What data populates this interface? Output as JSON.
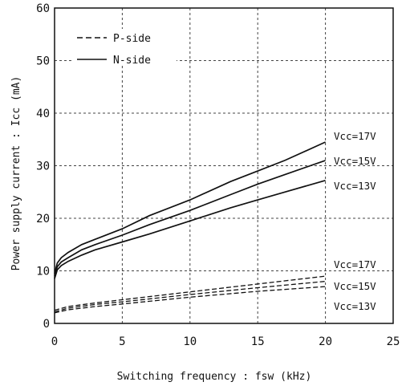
{
  "chart_data": {
    "type": "line",
    "title": "",
    "xlabel": "Switching frequency : fsw (kHz)",
    "ylabel": "Power supply current : Icc (mA)",
    "xlim": [
      0,
      25
    ],
    "ylim": [
      0,
      60
    ],
    "x_ticks": [
      0,
      5,
      10,
      15,
      20,
      25
    ],
    "y_ticks": [
      0,
      10,
      20,
      30,
      40,
      50,
      60
    ],
    "grid": "dashed",
    "legend": {
      "position": "top-left",
      "entries": [
        {
          "label": "P-side",
          "style": "dashed"
        },
        {
          "label": "N-side",
          "style": "solid"
        }
      ]
    },
    "series": [
      {
        "name": "Vcc=17V",
        "side": "N-side",
        "style": "solid",
        "x": [
          0,
          0.2,
          0.5,
          1,
          2,
          3,
          5,
          7,
          10,
          13,
          15,
          17,
          20
        ],
        "y": [
          9.5,
          11.5,
          12.5,
          13.5,
          15,
          16,
          18,
          20.5,
          23.5,
          27,
          29,
          31,
          34.5
        ]
      },
      {
        "name": "Vcc=15V",
        "side": "N-side",
        "style": "solid",
        "x": [
          0,
          0.2,
          0.5,
          1,
          2,
          3,
          5,
          7,
          10,
          13,
          15,
          17,
          20
        ],
        "y": [
          9,
          10.8,
          11.7,
          12.5,
          14,
          15,
          16.8,
          18.8,
          21.5,
          24.5,
          26.5,
          28.3,
          31
        ]
      },
      {
        "name": "Vcc=13V",
        "side": "N-side",
        "style": "solid",
        "x": [
          0,
          0.2,
          0.5,
          1,
          2,
          3,
          5,
          7,
          10,
          13,
          15,
          17,
          20
        ],
        "y": [
          8.5,
          10.2,
          11,
          11.8,
          13,
          14,
          15.5,
          17,
          19.5,
          22,
          23.5,
          25,
          27.2
        ]
      },
      {
        "name": "Vcc=17V",
        "side": "P-side",
        "style": "dashed",
        "x": [
          0,
          1,
          3,
          5,
          10,
          15,
          20
        ],
        "y": [
          2.5,
          3.2,
          3.9,
          4.5,
          6,
          7.5,
          9
        ]
      },
      {
        "name": "Vcc=15V",
        "side": "P-side",
        "style": "dashed",
        "x": [
          0,
          1,
          3,
          5,
          10,
          15,
          20
        ],
        "y": [
          2.2,
          2.9,
          3.6,
          4.1,
          5.5,
          6.8,
          8
        ]
      },
      {
        "name": "Vcc=13V",
        "side": "P-side",
        "style": "dashed",
        "x": [
          0,
          1,
          3,
          5,
          10,
          15,
          20
        ],
        "y": [
          2,
          2.6,
          3.2,
          3.7,
          5,
          6.1,
          7
        ]
      }
    ],
    "series_labels": [
      {
        "text": "Vcc=17V"
      },
      {
        "text": "Vcc=15V"
      },
      {
        "text": "Vcc=13V"
      },
      {
        "text": "Vcc=17V"
      },
      {
        "text": "Vcc=15V"
      },
      {
        "text": "Vcc=13V"
      }
    ]
  }
}
